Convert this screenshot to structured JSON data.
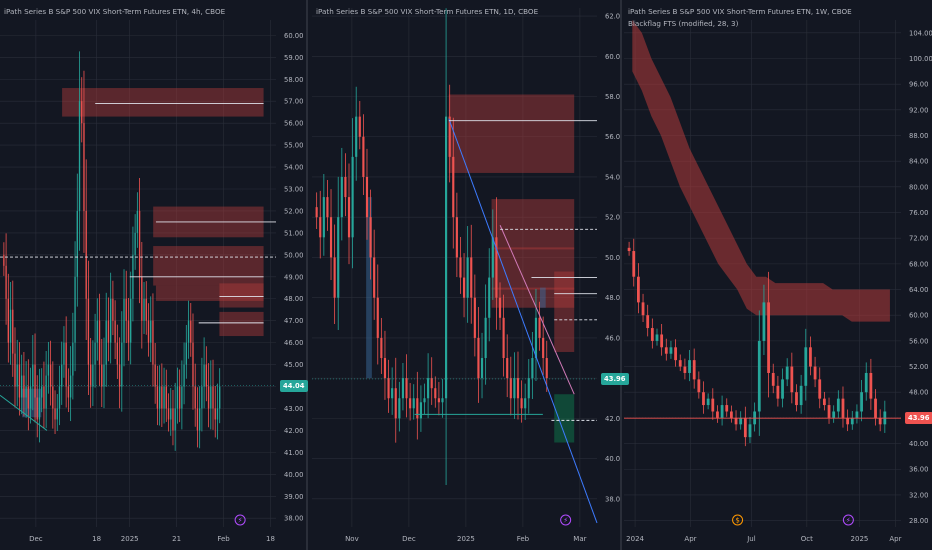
{
  "colors": {
    "bg": "#131722",
    "grid": "#2a2e39",
    "text": "#b2b5be",
    "up": "#26a69a",
    "down": "#ef5350",
    "zone_red": "#b23b3b",
    "zone_green": "#0e7a4b",
    "zone_blue": "#3a6a9a",
    "level": "#e0e3eb",
    "trend": "#3d7bff",
    "lightning": "#b14cff",
    "dividend": "#ff9800"
  },
  "chart_data": [
    {
      "type": "candlestick",
      "title": "iPath Series B S&P 500 VIX Short-Term Futures ETN, 4h, CBOE",
      "y_ticks": [
        38,
        39,
        40,
        41,
        42,
        43,
        44,
        45,
        46,
        47,
        48,
        49,
        50,
        51,
        52,
        53,
        54,
        55,
        56,
        57,
        58,
        59,
        60
      ],
      "y_tick_labels": [
        "38.00",
        "39.00",
        "40.00",
        "41.00",
        "42.00",
        "43.00",
        "44.00",
        "45.00",
        "46.00",
        "47.00",
        "48.00",
        "49.00",
        "50.00",
        "51.00",
        "52.00",
        "53.00",
        "54.00",
        "55.00",
        "56.00",
        "57.00",
        "58.00",
        "59.00",
        "60.00"
      ],
      "ylim": [
        37.6,
        60.7
      ],
      "x_labels": [
        "Dec",
        "18",
        "2025",
        "21",
        "Feb",
        "18"
      ],
      "last_price": "44.04",
      "price_series": [
        49.5,
        48,
        46,
        47.5,
        45.5,
        44,
        45,
        43.5,
        44.5,
        43.5,
        44,
        43,
        44,
        45,
        43.5,
        42.5,
        43.5,
        44,
        43,
        44.5,
        45,
        44,
        43,
        42.5,
        43,
        44,
        45,
        46,
        44,
        43.5,
        44.5,
        46,
        49,
        52,
        57,
        56,
        52,
        48,
        45,
        44,
        45,
        46,
        47,
        45,
        44,
        45,
        47,
        46,
        48,
        47,
        46,
        45,
        44,
        46,
        48,
        47,
        46,
        48,
        50,
        51,
        52,
        49,
        47,
        48,
        47,
        46,
        47,
        45,
        44,
        43,
        44,
        43,
        44,
        43,
        42.5,
        43,
        42,
        43,
        44,
        43,
        44,
        45,
        46,
        47,
        46,
        44,
        43,
        42,
        43,
        44,
        45,
        44,
        43,
        44,
        43,
        42.5,
        43,
        44
      ],
      "zones": [
        {
          "x0": 0.225,
          "x1": 0.955,
          "y0": 56.3,
          "y1": 57.6,
          "kind": "red"
        },
        {
          "x0": 0.555,
          "x1": 0.955,
          "y0": 50.8,
          "y1": 52.2,
          "kind": "red"
        },
        {
          "x0": 0.555,
          "x1": 0.955,
          "y0": 48.6,
          "y1": 50.4,
          "kind": "red"
        },
        {
          "x0": 0.565,
          "x1": 0.955,
          "y0": 47.9,
          "y1": 48.6,
          "kind": "red"
        },
        {
          "x0": 0.795,
          "x1": 0.955,
          "y0": 47.6,
          "y1": 48.7,
          "kind": "red"
        },
        {
          "x0": 0.795,
          "x1": 0.955,
          "y0": 46.3,
          "y1": 47.4,
          "kind": "red"
        },
        {
          "x0": 0.08,
          "x1": 0.15,
          "y0": 42.6,
          "y1": 43.9,
          "kind": "blue"
        }
      ],
      "levels": [
        {
          "x0": 0.345,
          "x1": 0.955,
          "y": 56.9,
          "style": "solid"
        },
        {
          "x0": 0.565,
          "x1": 1.0,
          "y": 51.5,
          "style": "solid"
        },
        {
          "x0": 0.47,
          "x1": 0.955,
          "y": 49.0,
          "style": "solid"
        },
        {
          "x0": 0.795,
          "x1": 0.955,
          "y": 48.1,
          "style": "solid"
        },
        {
          "x0": 0.72,
          "x1": 0.955,
          "y": 46.9,
          "style": "solid"
        },
        {
          "x0": 0.0,
          "x1": 1.0,
          "y": 49.9,
          "style": "dashed"
        }
      ],
      "trendlines": [
        {
          "x0": 0.0,
          "y0": 43.6,
          "x1": 0.17,
          "y1": 42.0,
          "color": "teal"
        }
      ],
      "icons": [
        {
          "kind": "lightning",
          "x": 0.87
        }
      ]
    },
    {
      "type": "candlestick",
      "title": "iPath Series B S&P 500 VIX Short-Term Futures ETN, 1D, CBOE",
      "y_ticks": [
        38,
        40,
        42,
        44,
        46,
        48,
        50,
        52,
        54,
        56,
        58,
        60,
        62
      ],
      "y_tick_labels": [
        "38.00",
        "40.00",
        "42.00",
        "44.00",
        "46.00",
        "48.00",
        "50.00",
        "52.00",
        "54.00",
        "56.00",
        "58.00",
        "60.00",
        "62.00"
      ],
      "ylim": [
        36.6,
        62.4
      ],
      "x_labels": [
        "Nov",
        "Dec",
        "2025",
        "Feb",
        "Mar"
      ],
      "last_price": "43.96",
      "price_series": [
        52,
        51,
        53,
        52,
        50,
        48,
        52,
        54,
        53,
        51,
        55,
        57,
        56,
        54,
        52,
        50,
        48,
        46,
        45,
        44,
        43,
        43.5,
        42,
        43,
        44,
        43,
        42.5,
        43,
        42,
        42.8,
        43,
        44,
        43.5,
        43,
        42.8,
        43,
        57,
        55,
        52,
        50,
        49,
        48,
        50,
        48,
        46,
        44,
        45,
        47,
        49,
        51,
        48,
        47,
        45,
        44,
        43,
        44,
        43,
        42.5,
        43,
        44,
        45,
        47,
        46,
        45,
        44
      ],
      "zones": [
        {
          "x0": 0.48,
          "x1": 0.92,
          "y0": 54.2,
          "y1": 58.1,
          "kind": "red"
        },
        {
          "x0": 0.63,
          "x1": 0.92,
          "y0": 50.4,
          "y1": 52.9,
          "kind": "red"
        },
        {
          "x0": 0.63,
          "x1": 0.92,
          "y0": 48.4,
          "y1": 50.5,
          "kind": "red"
        },
        {
          "x0": 0.63,
          "x1": 0.92,
          "y0": 47.5,
          "y1": 48.5,
          "kind": "red"
        },
        {
          "x0": 0.85,
          "x1": 0.92,
          "y0": 45.3,
          "y1": 49.3,
          "kind": "red"
        },
        {
          "x0": 0.85,
          "x1": 0.92,
          "y0": 40.8,
          "y1": 43.2,
          "kind": "green"
        },
        {
          "x0": 0.8,
          "x1": 0.82,
          "y0": 47.5,
          "y1": 48.5,
          "kind": "blue"
        },
        {
          "x0": 0.19,
          "x1": 0.21,
          "y0": 44.0,
          "y1": 53.0,
          "kind": "blue"
        }
      ],
      "levels": [
        {
          "x0": 0.48,
          "x1": 1.0,
          "y": 56.8,
          "style": "solid"
        },
        {
          "x0": 0.77,
          "x1": 1.0,
          "y": 49.0,
          "style": "solid"
        },
        {
          "x0": 0.66,
          "x1": 1.0,
          "y": 51.4,
          "style": "dashed"
        },
        {
          "x0": 0.85,
          "x1": 1.0,
          "y": 48.2,
          "style": "solid"
        },
        {
          "x0": 0.85,
          "x1": 1.0,
          "y": 46.9,
          "style": "dashed"
        },
        {
          "x0": 0.84,
          "x1": 1.0,
          "y": 41.9,
          "style": "dashed"
        }
      ],
      "trendlines": [
        {
          "x0": 0.48,
          "y0": 56.9,
          "x1": 1.0,
          "y1": 36.8,
          "color": "blue"
        },
        {
          "x0": 0.36,
          "y0": 42.2,
          "x1": 0.81,
          "y1": 42.2,
          "color": "teal"
        },
        {
          "x0": 0.66,
          "y0": 51.6,
          "x1": 0.92,
          "y1": 43.2,
          "color": "pink"
        }
      ],
      "icons": [
        {
          "kind": "lightning",
          "x": 0.89
        }
      ]
    },
    {
      "type": "candlestick",
      "title": "iPath Series B S&P 500 VIX Short-Term Futures ETN, 1W, CBOE",
      "subtitle": "Blackflag FTS (modified, 28, 3)",
      "y_ticks": [
        28,
        32,
        36,
        40,
        44,
        48,
        52,
        56,
        60,
        64,
        68,
        72,
        76,
        80,
        84,
        88,
        92,
        96,
        100,
        104
      ],
      "y_tick_labels": [
        "28.00",
        "32.00",
        "36.00",
        "40.00",
        "44.00",
        "48.00",
        "52.00",
        "56.00",
        "60.00",
        "64.00",
        "68.00",
        "72.00",
        "76.00",
        "80.00",
        "84.00",
        "88.00",
        "92.00",
        "96.00",
        "100.00",
        "104.00"
      ],
      "ylim": [
        27.0,
        106.0
      ],
      "x_labels": [
        "2024",
        "Apr",
        "Jul",
        "Oct",
        "2025",
        "Apr"
      ],
      "last_price": "43.96",
      "price_series": [
        70,
        66,
        62,
        60,
        58,
        56,
        57,
        55,
        54,
        55,
        53,
        52,
        51,
        53,
        50,
        48,
        46,
        47,
        45,
        44,
        46,
        45,
        44,
        43,
        44,
        41,
        43,
        45,
        56,
        62,
        51,
        49,
        47,
        50,
        52,
        48,
        46,
        49,
        55,
        52,
        50,
        47,
        46,
        44,
        45,
        47,
        44,
        43,
        44,
        45,
        48,
        51,
        47,
        44,
        43,
        45
      ],
      "band": {
        "upper": [
          106,
          104,
          100,
          97,
          94,
          90,
          86,
          83,
          80,
          77,
          74,
          71,
          68,
          66,
          66,
          65,
          65,
          65,
          65,
          65,
          65,
          64,
          64,
          64,
          64,
          64,
          64,
          64
        ],
        "lower": [
          98,
          95,
          91,
          88,
          84,
          80,
          77,
          74,
          71,
          68,
          66,
          64,
          61,
          60,
          60,
          60,
          60,
          60,
          60,
          60,
          60,
          60,
          60,
          59,
          59,
          59,
          59,
          59
        ]
      },
      "levels": [
        {
          "x0": 0.0,
          "x1": 1.0,
          "y": 43.96,
          "style": "solid"
        }
      ],
      "icons": [
        {
          "kind": "dividend",
          "x": 0.41
        },
        {
          "kind": "lightning",
          "x": 0.81
        }
      ]
    }
  ]
}
